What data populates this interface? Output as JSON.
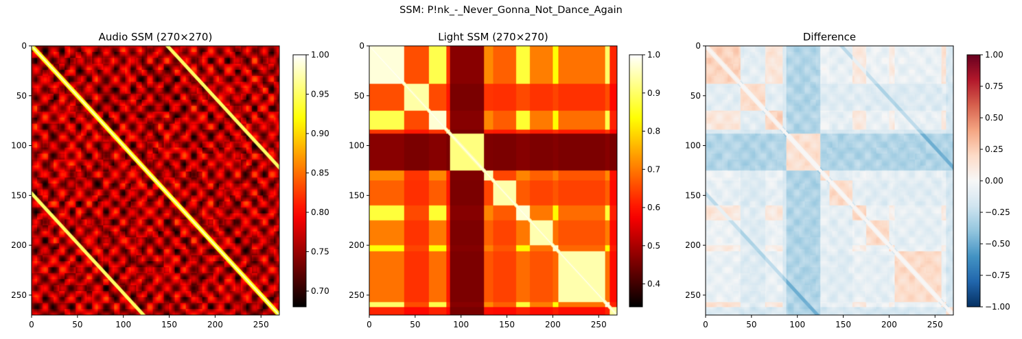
{
  "figure": {
    "suptitle": "SSM: P!nk_-_Never_Gonna_Not_Dance_Again"
  },
  "chart_data": [
    {
      "type": "heatmap",
      "title": "Audio SSM (270×270)",
      "matrix_size": 270,
      "colormap": "hot",
      "xlim": [
        0,
        270
      ],
      "ylim": [
        270,
        0
      ],
      "xticks": [
        0,
        50,
        100,
        150,
        200,
        250
      ],
      "yticks": [
        0,
        50,
        100,
        150,
        200,
        250
      ],
      "colorbar": {
        "range": [
          0.68,
          1.0
        ],
        "ticks": [
          "0.70",
          "0.75",
          "0.80",
          "0.85",
          "0.90",
          "0.95",
          "1.00"
        ],
        "tick_values": [
          0.7,
          0.75,
          0.8,
          0.85,
          0.9,
          0.95,
          1.0
        ]
      },
      "approx_structure": {
        "main_diagonal": 1.0,
        "off_diagonals_lag": [
          148,
          -148
        ],
        "typical_value": 0.78
      }
    },
    {
      "type": "heatmap",
      "title": "Light SSM (270×270)",
      "matrix_size": 270,
      "colormap": "hot",
      "xlim": [
        0,
        270
      ],
      "ylim": [
        270,
        0
      ],
      "xticks": [
        0,
        50,
        100,
        150,
        200,
        250
      ],
      "yticks": [
        0,
        50,
        100,
        150,
        200,
        250
      ],
      "colorbar": {
        "range": [
          0.34,
          1.0
        ],
        "ticks": [
          "0.4",
          "0.5",
          "0.6",
          "0.7",
          "0.8",
          "0.9",
          "1.0"
        ],
        "tick_values": [
          0.4,
          0.5,
          0.6,
          0.7,
          0.8,
          0.9,
          1.0
        ]
      },
      "approx_segment_boundaries": [
        0,
        38,
        65,
        84,
        88,
        125,
        135,
        160,
        175,
        200,
        206,
        257,
        262,
        270
      ]
    },
    {
      "type": "heatmap",
      "title": "Difference",
      "matrix_size": 270,
      "colormap": "RdBu_r",
      "xlim": [
        0,
        270
      ],
      "ylim": [
        270,
        0
      ],
      "xticks": [
        0,
        50,
        100,
        150,
        200,
        250
      ],
      "yticks": [
        0,
        50,
        100,
        150,
        200,
        250
      ],
      "colorbar": {
        "range": [
          -1.0,
          1.0
        ],
        "ticks": [
          "1.00",
          "0.75",
          "0.50",
          "0.25",
          "0.00",
          "−0.25",
          "−0.50",
          "−0.75",
          "−1.00"
        ],
        "tick_values": [
          1.0,
          0.75,
          0.5,
          0.25,
          0.0,
          -0.25,
          -0.5,
          -0.75,
          -1.0
        ]
      }
    }
  ]
}
